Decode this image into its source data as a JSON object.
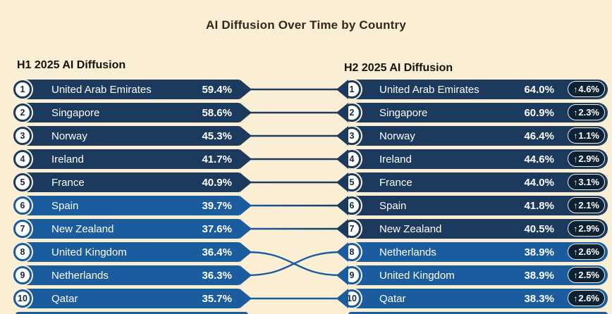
{
  "title": "AI Diffusion Over Time by Country",
  "colors": {
    "background": "#faefd4",
    "pill_high": "#1b3a5e",
    "pill_low": "#1b5c9e",
    "change_badge": "#0e2236",
    "row_text": "#ffffff",
    "title_text": "#33281c"
  },
  "chart_data": {
    "type": "table",
    "title": "AI Diffusion Over Time by Country",
    "periods": [
      "H1 2025 AI Diffusion",
      "H2 2025 AI Diffusion"
    ],
    "h1_rows": [
      {
        "rank": 1,
        "country": "United Arab Emirates",
        "value": 59.4
      },
      {
        "rank": 2,
        "country": "Singapore",
        "value": 58.6
      },
      {
        "rank": 3,
        "country": "Norway",
        "value": 45.3
      },
      {
        "rank": 4,
        "country": "Ireland",
        "value": 41.7
      },
      {
        "rank": 5,
        "country": "France",
        "value": 40.9
      },
      {
        "rank": 6,
        "country": "Spain",
        "value": 39.7
      },
      {
        "rank": 7,
        "country": "New Zealand",
        "value": 37.6
      },
      {
        "rank": 8,
        "country": "United Kingdom",
        "value": 36.4
      },
      {
        "rank": 9,
        "country": "Netherlands",
        "value": 36.3
      },
      {
        "rank": 10,
        "country": "Qatar",
        "value": 35.7
      }
    ],
    "h2_rows": [
      {
        "rank": 1,
        "country": "United Arab Emirates",
        "value": 64.0,
        "change": 4.6
      },
      {
        "rank": 2,
        "country": "Singapore",
        "value": 60.9,
        "change": 2.3
      },
      {
        "rank": 3,
        "country": "Norway",
        "value": 46.4,
        "change": 1.1
      },
      {
        "rank": 4,
        "country": "Ireland",
        "value": 44.6,
        "change": 2.9
      },
      {
        "rank": 5,
        "country": "France",
        "value": 44.0,
        "change": 3.1
      },
      {
        "rank": 6,
        "country": "Spain",
        "value": 41.8,
        "change": 2.1
      },
      {
        "rank": 7,
        "country": "New Zealand",
        "value": 40.5,
        "change": 2.9
      },
      {
        "rank": 8,
        "country": "Netherlands",
        "value": 38.9,
        "change": 2.6
      },
      {
        "rank": 9,
        "country": "United Kingdom",
        "value": 38.9,
        "change": 2.5
      },
      {
        "rank": 10,
        "country": "Qatar",
        "value": 38.3,
        "change": 2.6
      }
    ],
    "additional_rows_cropped": true
  }
}
